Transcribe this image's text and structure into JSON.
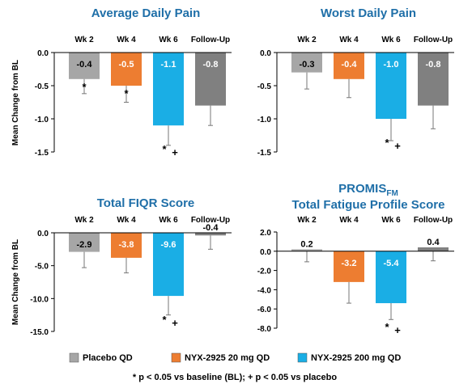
{
  "colors": {
    "placebo": "#a6a6a6",
    "nyx20": "#ed7d31",
    "nyx200": "#1aaee5",
    "followup": "#808080",
    "title": "#1f6fa8"
  },
  "legend": {
    "items": [
      {
        "label": "Placebo QD",
        "color": "#a6a6a6"
      },
      {
        "label": "NYX-2925 20 mg QD",
        "color": "#ed7d31"
      },
      {
        "label": "NYX-2925 200 mg QD",
        "color": "#1aaee5"
      }
    ],
    "footnote": "* p < 0.05 vs baseline (BL); + p < 0.05 vs placebo"
  },
  "chart_data": [
    {
      "type": "bar",
      "title": "Average Daily Pain",
      "ylabel": "Mean Change from BL",
      "categories": [
        "Wk 2",
        "Wk 4",
        "Wk 6",
        "Follow-Up"
      ],
      "values": [
        -0.4,
        -0.5,
        -1.1,
        -0.8
      ],
      "value_labels": [
        "-0.4",
        "-0.5",
        "-1.1",
        "-0.8"
      ],
      "error_low": [
        -0.62,
        -0.75,
        -1.4,
        -1.1
      ],
      "bar_colors": [
        "#a6a6a6",
        "#ed7d31",
        "#1aaee5",
        "#808080"
      ],
      "significance": [
        "*",
        "*",
        "* +",
        ""
      ],
      "ylim": [
        -1.5,
        0.0
      ],
      "yticks": [
        0.0,
        -0.5,
        -1.0,
        -1.5
      ],
      "ytick_labels": [
        "0.0",
        "-0.5",
        "-1.0",
        "-1.5"
      ],
      "legend": "bottom"
    },
    {
      "type": "bar",
      "title": "Worst Daily Pain",
      "ylabel": "",
      "categories": [
        "Wk 2",
        "Wk 4",
        "Wk 6",
        "Follow-Up"
      ],
      "values": [
        -0.3,
        -0.4,
        -1.0,
        -0.8
      ],
      "value_labels": [
        "-0.3",
        "-0.4",
        "-1.0",
        "-0.8"
      ],
      "error_low": [
        -0.55,
        -0.68,
        -1.33,
        -1.15
      ],
      "bar_colors": [
        "#a6a6a6",
        "#ed7d31",
        "#1aaee5",
        "#808080"
      ],
      "significance": [
        "",
        "",
        "* +",
        ""
      ],
      "ylim": [
        -1.5,
        0.0
      ],
      "yticks": [
        0.0,
        -0.5,
        -1.0,
        -1.5
      ],
      "ytick_labels": [
        "0.0",
        "-0.5",
        "-1.0",
        "-1.5"
      ],
      "legend": "bottom"
    },
    {
      "type": "bar",
      "title": "Total FIQR Score",
      "ylabel": "Mean Change from BL",
      "categories": [
        "Wk 2",
        "Wk 4",
        "Wk 6",
        "Follow-Up"
      ],
      "values": [
        -2.9,
        -3.8,
        -9.6,
        -0.4
      ],
      "value_labels": [
        "-2.9",
        "-3.8",
        "-9.6",
        "-0.4"
      ],
      "error_low": [
        -5.3,
        -6.1,
        -12.5,
        -2.5
      ],
      "bar_colors": [
        "#a6a6a6",
        "#ed7d31",
        "#1aaee5",
        "#808080"
      ],
      "significance": [
        "",
        "",
        "* +",
        ""
      ],
      "ylim": [
        -15.0,
        0.0
      ],
      "yticks": [
        0.0,
        -5.0,
        -10.0,
        -15.0
      ],
      "ytick_labels": [
        "0.0",
        "-5.0",
        "-10.0",
        "-15.0"
      ],
      "legend": "bottom"
    },
    {
      "type": "bar",
      "title_main": "PROMIS",
      "title_sub": "FM",
      "title_line2": "Total Fatigue Profile Score",
      "ylabel": "",
      "categories": [
        "Wk 2",
        "Wk 4",
        "Wk 6",
        "Follow-Up"
      ],
      "values": [
        0.2,
        -3.2,
        -5.4,
        0.4
      ],
      "value_labels": [
        "0.2",
        "-3.2",
        "-5.4",
        "0.4"
      ],
      "error_low": [
        -1.1,
        -5.4,
        -7.1,
        -1.0
      ],
      "bar_colors": [
        "#a6a6a6",
        "#ed7d31",
        "#1aaee5",
        "#808080"
      ],
      "significance": [
        "",
        "",
        "* +",
        ""
      ],
      "ylim": [
        -8.0,
        2.0
      ],
      "yticks": [
        2.0,
        0.0,
        -2.0,
        -4.0,
        -6.0,
        -8.0
      ],
      "ytick_labels": [
        "2.0",
        "0.0",
        "-2.0",
        "-4.0",
        "-6.0",
        "-8.0"
      ],
      "legend": "bottom"
    }
  ]
}
